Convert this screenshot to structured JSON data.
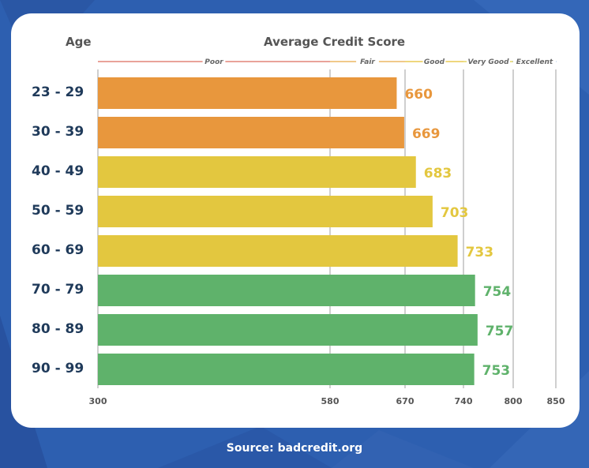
{
  "header": {
    "age_label": "Age",
    "score_label": "Average Credit Score"
  },
  "source": "Source: badcredit.org",
  "colors": {
    "orange": "#e8973d",
    "yellow": "#e3c73f",
    "green": "#5fb26b",
    "poor": "#e9a39a",
    "fair": "#f0c98a",
    "good": "#efd77d",
    "very_good": "#ece08a",
    "excellent": "#9ab7e0"
  },
  "chart_data": {
    "type": "bar",
    "orientation": "horizontal",
    "title": "Average Credit Score",
    "ylabel": "Age",
    "categories": [
      "23 - 29",
      "30 - 39",
      "40 - 49",
      "50 - 59",
      "60 - 69",
      "70 - 79",
      "80 - 89",
      "90 - 99"
    ],
    "values": [
      660,
      669,
      683,
      703,
      733,
      754,
      757,
      753
    ],
    "bar_colors": [
      "orange",
      "orange",
      "yellow",
      "yellow",
      "yellow",
      "green",
      "green",
      "green"
    ],
    "x_ticks": [
      300,
      580,
      670,
      740,
      800,
      850
    ],
    "xlim": [
      300,
      850
    ],
    "grid": true,
    "bands": [
      {
        "label": "Poor",
        "from": 300,
        "to": 580,
        "color": "poor"
      },
      {
        "label": "Fair",
        "from": 580,
        "to": 670,
        "color": "fair"
      },
      {
        "label": "Good",
        "from": 670,
        "to": 740,
        "color": "good"
      },
      {
        "label": "Very Good",
        "from": 740,
        "to": 800,
        "color": "very_good"
      },
      {
        "label": "Excellent",
        "from": 800,
        "to": 850,
        "color": "excellent"
      }
    ]
  }
}
